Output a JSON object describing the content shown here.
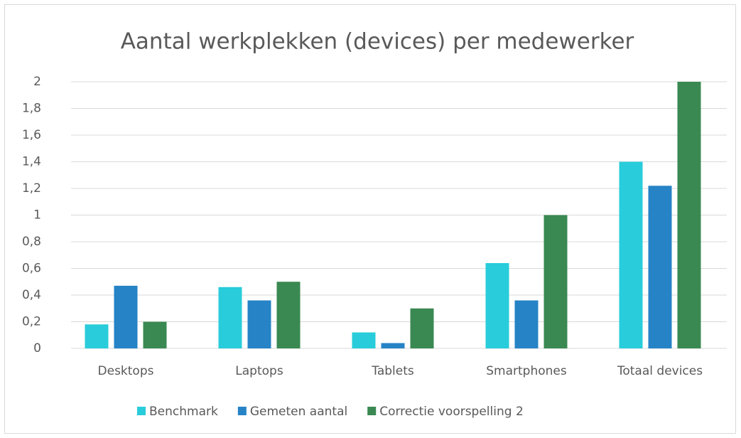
{
  "chart_data": {
    "type": "bar",
    "title": "Aantal werkplekken (devices) per medewerker",
    "categories": [
      "Desktops",
      "Laptops",
      "Tablets",
      "Smartphones",
      "Totaal devices"
    ],
    "series": [
      {
        "name": "Benchmark",
        "color": "#29ccda",
        "values": [
          0.18,
          0.46,
          0.12,
          0.64,
          1.4
        ]
      },
      {
        "name": "Gemeten aantal",
        "color": "#2683c6",
        "values": [
          0.47,
          0.36,
          0.04,
          0.36,
          1.22
        ]
      },
      {
        "name": "Correctie voorspelling 2",
        "color": "#3a8952",
        "values": [
          0.2,
          0.5,
          0.3,
          1.0,
          2.0
        ]
      }
    ],
    "ylim": [
      0,
      2
    ],
    "yticks": [
      0,
      {
        "value": 0.2,
        "label": "0,2"
      },
      {
        "value": 0.4,
        "label": "0,4"
      },
      {
        "value": 0.6,
        "label": "0,6"
      },
      {
        "value": 0.8,
        "label": "0,8"
      },
      1,
      {
        "value": 1.2,
        "label": "1,2"
      },
      {
        "value": 1.4,
        "label": "1,4"
      },
      {
        "value": 1.6,
        "label": "1,6"
      },
      {
        "value": 1.8,
        "label": "1,8"
      },
      2
    ],
    "grid": true,
    "legend": "bottom"
  }
}
